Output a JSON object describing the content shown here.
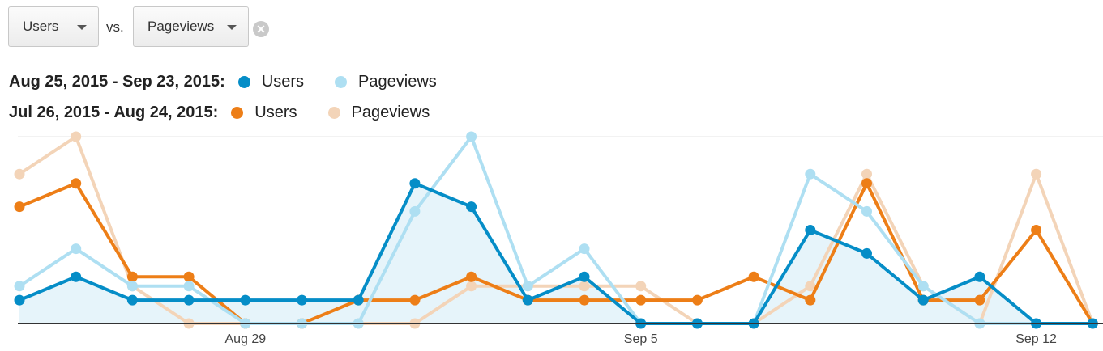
{
  "controls": {
    "primary_metric": "Users",
    "vs_label": "vs.",
    "secondary_metric": "Pageviews",
    "remove_glyph": "✕"
  },
  "legend": [
    {
      "range": "Aug 25, 2015 - Sep 23, 2015:",
      "items": [
        {
          "name": "Users",
          "color": "#058dc7"
        },
        {
          "name": "Pageviews",
          "color": "#aedff2"
        }
      ]
    },
    {
      "range": "Jul 26, 2015 - Aug 24, 2015:",
      "items": [
        {
          "name": "Users",
          "color": "#ed7e17"
        },
        {
          "name": "Pageviews",
          "color": "#f3d4b8"
        }
      ]
    }
  ],
  "chart_data": {
    "type": "line",
    "x": [
      "Aug 25",
      "Aug 26",
      "Aug 27",
      "Aug 28",
      "Aug 29",
      "Aug 30",
      "Aug 31",
      "Sep 1",
      "Sep 2",
      "Sep 3",
      "Sep 4",
      "Sep 5",
      "Sep 6",
      "Sep 7",
      "Sep 8",
      "Sep 9",
      "Sep 10",
      "Sep 11",
      "Sep 12",
      "Sep 13"
    ],
    "x_tick_labels": [
      {
        "index": 4,
        "label": "Aug 29"
      },
      {
        "index": 11,
        "label": "Sep 5"
      },
      {
        "index": 18,
        "label": "Sep 12"
      }
    ],
    "grid": true,
    "series": [
      {
        "name": "Pageviews",
        "period": "Jul 26, 2015 - Aug 24, 2015",
        "color": "#f3d4b8",
        "values": [
          6.4,
          8.0,
          1.6,
          0.0,
          0.0,
          0.0,
          0.0,
          0.0,
          1.6,
          1.6,
          1.6,
          1.6,
          0.0,
          0.0,
          1.6,
          6.4,
          1.6,
          0.0,
          6.4,
          0.0
        ]
      },
      {
        "name": "Users",
        "period": "Jul 26, 2015 - Aug 24, 2015",
        "color": "#ed7e17",
        "values": [
          5.0,
          6.0,
          2.0,
          2.0,
          0.0,
          0.0,
          1.0,
          1.0,
          2.0,
          1.0,
          1.0,
          1.0,
          1.0,
          2.0,
          1.0,
          6.0,
          1.0,
          1.0,
          4.0,
          0.0
        ]
      },
      {
        "name": "Pageviews",
        "period": "Aug 25, 2015 - Sep 23, 2015",
        "color": "#aedff2",
        "values": [
          1.6,
          3.2,
          1.6,
          1.6,
          0.0,
          0.0,
          0.0,
          4.8,
          8.0,
          1.6,
          3.2,
          0.0,
          0.0,
          0.0,
          6.4,
          4.8,
          1.6,
          0.0,
          0.0,
          0.0
        ]
      },
      {
        "name": "Users",
        "period": "Aug 25, 2015 - Sep 23, 2015",
        "color": "#058dc7",
        "values": [
          1.0,
          2.0,
          1.0,
          1.0,
          1.0,
          1.0,
          1.0,
          6.0,
          5.0,
          1.0,
          2.0,
          0.0,
          0.0,
          0.0,
          4.0,
          3.0,
          1.0,
          2.0,
          0.0,
          0.0
        ]
      }
    ],
    "ylim": [
      0,
      8
    ]
  }
}
